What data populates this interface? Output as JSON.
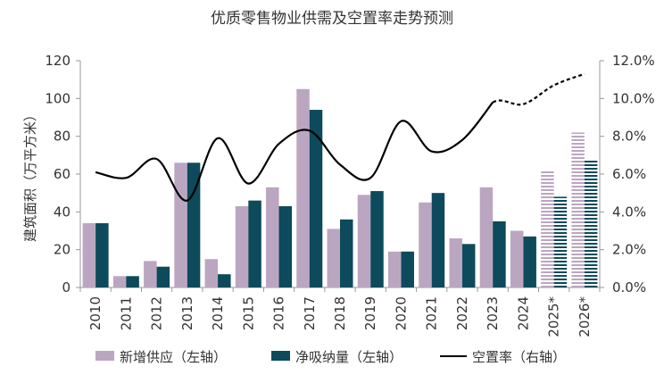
{
  "chart_data": {
    "type": "bar",
    "title": "优质零售物业供需及空置率走势预测",
    "categories": [
      "2010",
      "2011",
      "2012",
      "2013",
      "2014",
      "2015",
      "2016",
      "2017",
      "2018",
      "2019",
      "2020",
      "2021",
      "2022",
      "2023",
      "2024",
      "2025*",
      "2026*"
    ],
    "forecast_categories": [
      "2025*",
      "2026*"
    ],
    "series": [
      {
        "name": "新增供应（左轴）",
        "type": "bar",
        "axis": "left",
        "color": "#bba6c1",
        "values": [
          34,
          6,
          14,
          66,
          15,
          43,
          53,
          105,
          31,
          49,
          19,
          45,
          26,
          53,
          30,
          62,
          82
        ]
      },
      {
        "name": "净吸纳量（左轴）",
        "type": "bar",
        "axis": "left",
        "color": "#0d4a5b",
        "values": [
          34,
          6,
          11,
          66,
          7,
          46,
          43,
          94,
          36,
          51,
          19,
          50,
          23,
          35,
          27,
          48,
          68
        ]
      },
      {
        "name": "空置率（右轴）",
        "type": "line",
        "axis": "right",
        "color": "#000000",
        "values": [
          6.1,
          5.8,
          6.8,
          4.6,
          7.9,
          5.5,
          7.6,
          8.3,
          6.5,
          5.8,
          8.8,
          7.2,
          7.8,
          9.8,
          9.7,
          10.7,
          11.3
        ]
      }
    ],
    "y_left": {
      "label": "建筑面积（万平方米）",
      "min": 0,
      "max": 120,
      "ticks": [
        "0",
        "20",
        "40",
        "60",
        "80",
        "100",
        "120"
      ]
    },
    "y_right": {
      "label": "",
      "min": 0,
      "max": 12,
      "ticks": [
        "0.0%",
        "2.0%",
        "4.0%",
        "6.0%",
        "8.0%",
        "10.0%",
        "12.0%"
      ]
    },
    "grid": false,
    "legend_position": "bottom"
  }
}
